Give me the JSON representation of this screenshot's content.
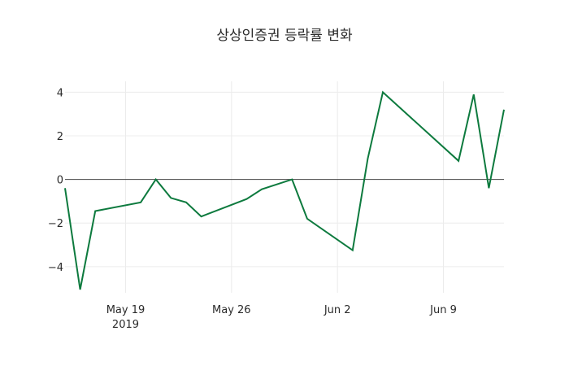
{
  "chart_data": {
    "type": "line",
    "title": "상상인증권 등락률 변화",
    "xlabel": "",
    "ylabel": "",
    "x": [
      "2019-05-15",
      "2019-05-16",
      "2019-05-17",
      "2019-05-20",
      "2019-05-21",
      "2019-05-22",
      "2019-05-23",
      "2019-05-24",
      "2019-05-27",
      "2019-05-28",
      "2019-05-30",
      "2019-05-31",
      "2019-06-03",
      "2019-06-04",
      "2019-06-05",
      "2019-06-10",
      "2019-06-11",
      "2019-06-12",
      "2019-06-13"
    ],
    "series": [
      {
        "name": "등락률",
        "color": "#0d7a3e",
        "values": [
          -0.4,
          -5.05,
          -1.45,
          -1.05,
          0.0,
          -0.85,
          -1.05,
          -1.7,
          -0.9,
          -0.45,
          0.0,
          -1.8,
          -3.25,
          0.95,
          4.0,
          0.85,
          3.9,
          -0.4,
          3.2
        ]
      }
    ],
    "x_ticks": [
      {
        "date": "2019-05-19",
        "label": "May 19",
        "sublabel": "2019"
      },
      {
        "date": "2019-05-26",
        "label": "May 26",
        "sublabel": ""
      },
      {
        "date": "2019-06-02",
        "label": "Jun 2",
        "sublabel": ""
      },
      {
        "date": "2019-06-09",
        "label": "Jun 9",
        "sublabel": ""
      }
    ],
    "y_ticks": [
      4,
      2,
      0,
      -2,
      -4
    ],
    "y_tick_labels": [
      "4",
      "2",
      "0",
      "−2",
      "−4"
    ],
    "xlim": [
      "2019-05-15",
      "2019-06-13"
    ],
    "ylim": [
      -5.2,
      4.5
    ],
    "grid": true,
    "zeroline": true,
    "legend": "none"
  }
}
